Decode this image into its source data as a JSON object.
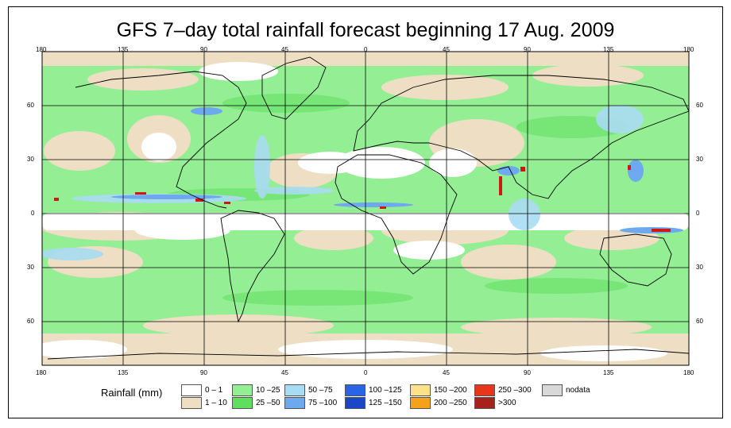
{
  "title": "GFS 7–day total rainfall forecast beginning 17 Aug. 2009",
  "axes": {
    "top_ticks": [
      "180",
      "135",
      "90",
      "45",
      "0",
      "45",
      "90",
      "135",
      "180"
    ],
    "bottom_ticks": [
      "180",
      "135",
      "90",
      "45",
      "0",
      "45",
      "90",
      "135",
      "180"
    ],
    "left_ticks": [
      "60",
      "30",
      "0",
      "30",
      "60"
    ],
    "right_ticks": [
      "60",
      "30",
      "0",
      "30",
      "60"
    ]
  },
  "colors": {
    "ocean_base": "#94ee94",
    "dry": "#eedec4",
    "none": "#ffffff",
    "light_blue": "#a8dcf2",
    "mid_blue": "#6ea8ee",
    "deep_blue": "#2a64e6",
    "heavy_red": "#cc1a10"
  },
  "legend": {
    "title": "Rainfall (mm)",
    "items": [
      {
        "label": "0 – 1",
        "color": "#ffffff"
      },
      {
        "label": "1 – 10",
        "color": "#eedec4"
      },
      {
        "label": "10 –25",
        "color": "#94ee94"
      },
      {
        "label": "25 –50",
        "color": "#5ee05e"
      },
      {
        "label": "50 –75",
        "color": "#a8dcf2"
      },
      {
        "label": "75 –100",
        "color": "#6ea8ee"
      },
      {
        "label": "100 –125",
        "color": "#2a64e6"
      },
      {
        "label": "125 –150",
        "color": "#1a46c8"
      },
      {
        "label": "150 –200",
        "color": "#fde28a"
      },
      {
        "label": "200 –250",
        "color": "#f3a21a"
      },
      {
        "label": "250 –300",
        "color": "#e8361a"
      },
      {
        "label": ">300",
        "color": "#a8201a"
      },
      {
        "label": "nodata",
        "color": "#d8d8d8"
      }
    ]
  }
}
